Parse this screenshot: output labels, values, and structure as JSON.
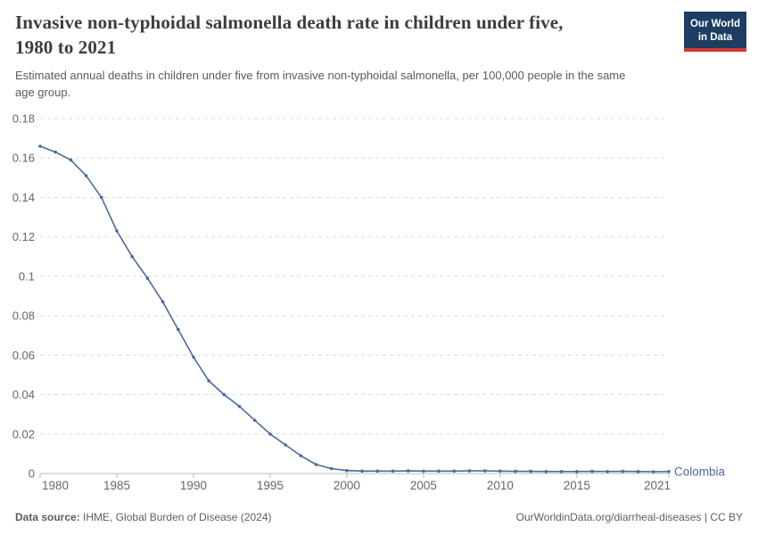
{
  "header": {
    "title_lines": [
      "Invasive non-typhoidal salmonella death rate in children under five,",
      "1980 to 2021"
    ],
    "subtitle_lines": [
      "Estimated annual deaths in children under five from invasive non-typhoidal salmonella, per 100,000 people in the same",
      "age group."
    ],
    "logo_line1": "Our World",
    "logo_line2": "in Data"
  },
  "chart_data": {
    "type": "line",
    "title": "Invasive non-typhoidal salmonella death rate in children under five, 1980 to 2021",
    "subtitle": "Estimated annual deaths in children under five from invasive non-typhoidal salmonella, per 100,000 people in the same age group.",
    "xlabel": "",
    "ylabel": "",
    "ylim": [
      0,
      0.18
    ],
    "grid": "horizontal-dashed",
    "legend_position": "end-of-line-label",
    "x": [
      1980,
      1981,
      1982,
      1983,
      1984,
      1985,
      1986,
      1987,
      1988,
      1989,
      1990,
      1991,
      1992,
      1993,
      1994,
      1995,
      1996,
      1997,
      1998,
      1999,
      2000,
      2001,
      2002,
      2003,
      2004,
      2005,
      2006,
      2007,
      2008,
      2009,
      2010,
      2011,
      2012,
      2013,
      2014,
      2015,
      2016,
      2017,
      2018,
      2019,
      2020,
      2021
    ],
    "series": [
      {
        "name": "Colombia",
        "values": [
          0.166,
          0.163,
          0.159,
          0.151,
          0.14,
          0.123,
          0.11,
          0.099,
          0.087,
          0.073,
          0.059,
          0.047,
          0.04,
          0.034,
          0.027,
          0.02,
          0.0145,
          0.009,
          0.0045,
          0.0025,
          0.0015,
          0.0012,
          0.0012,
          0.0012,
          0.0013,
          0.0012,
          0.0012,
          0.0012,
          0.0013,
          0.0013,
          0.0012,
          0.0011,
          0.0011,
          0.001,
          0.001,
          0.001,
          0.0011,
          0.001,
          0.0011,
          0.001,
          0.0009,
          0.001
        ]
      }
    ],
    "yticks": [
      0,
      0.02,
      0.04,
      0.06,
      0.08,
      0.1,
      0.12,
      0.14,
      0.16,
      0.18
    ],
    "ytick_labels": [
      "0",
      "0.02",
      "0.04",
      "0.06",
      "0.08",
      "0.1",
      "0.12",
      "0.14",
      "0.16",
      "0.18"
    ],
    "xtick_values": [
      1980,
      1985,
      1990,
      1995,
      2000,
      2005,
      2010,
      2015,
      2021
    ],
    "xtick_labels": [
      "1980",
      "1985",
      "1990",
      "1995",
      "2000",
      "2005",
      "2010",
      "2015",
      "2021"
    ]
  },
  "footer": {
    "source_label": "Data source:",
    "source_value": "IHME, Global Burden of Disease (2024)",
    "license": "OurWorldinData.org/diarrheal-diseases | CC BY"
  },
  "colors": {
    "line": "#4c6a9c",
    "entity_label": "#4c6a9c",
    "grid": "#dcdcdc",
    "axis": "#b8b8b8",
    "tick_text": "#666666",
    "logo_bg": "#1d3d63",
    "logo_bar": "#d13b32"
  }
}
